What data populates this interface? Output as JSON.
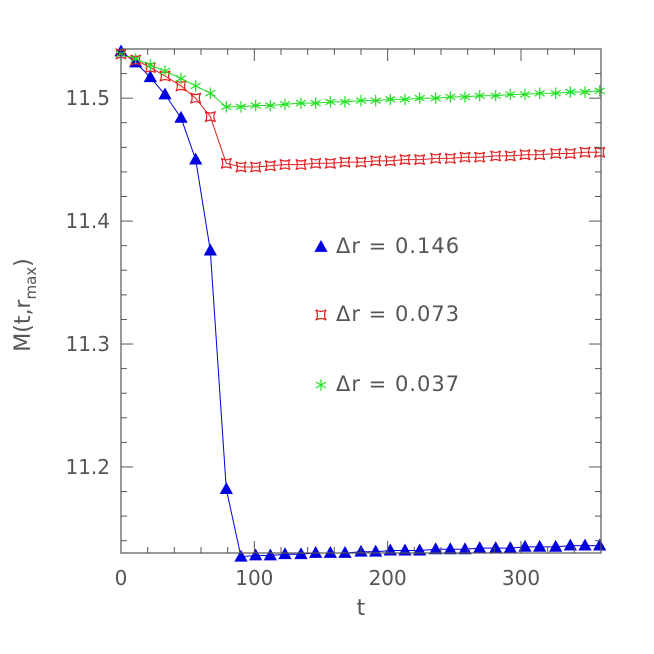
{
  "chart_data": {
    "type": "line",
    "xlabel": "t",
    "ylabel": "M(t,r_max)",
    "ylabel_main": "M(t,r",
    "ylabel_sub": "max",
    "ylabel_close": ")",
    "xlim": [
      0,
      360
    ],
    "ylim": [
      11.13,
      11.54
    ],
    "xticks": [
      0,
      100,
      200,
      300
    ],
    "xtick_labels": [
      "0",
      "100",
      "200",
      "300"
    ],
    "yticks": [
      11.2,
      11.3,
      11.4,
      11.5
    ],
    "ytick_labels": [
      "11.2",
      "11.3",
      "11.4",
      "11.5"
    ],
    "grid": false,
    "legend_position": "center-right",
    "series": [
      {
        "name": "Δr = 0.146",
        "legend_prefix": "Δr  =  ",
        "legend_value": "0.146",
        "marker": "triangle",
        "color": "#0000e0",
        "x": [
          0,
          11,
          22,
          33,
          45,
          56,
          67,
          79,
          90,
          101,
          112,
          123,
          135,
          146,
          157,
          168,
          180,
          191,
          202,
          213,
          224,
          236,
          247,
          258,
          269,
          281,
          292,
          303,
          314,
          326,
          337,
          348,
          359
        ],
        "y": [
          11.538,
          11.529,
          11.517,
          11.503,
          11.484,
          11.45,
          11.376,
          11.182,
          11.127,
          11.128,
          11.128,
          11.129,
          11.129,
          11.13,
          11.13,
          11.13,
          11.131,
          11.131,
          11.132,
          11.132,
          11.132,
          11.133,
          11.133,
          11.133,
          11.134,
          11.134,
          11.134,
          11.135,
          11.135,
          11.135,
          11.136,
          11.136,
          11.136
        ]
      },
      {
        "name": "Δr = 0.073",
        "legend_prefix": "Δr  =  ",
        "legend_value": "0.073",
        "marker": "star4",
        "color": "#e02020",
        "x": [
          0,
          11,
          22,
          33,
          45,
          56,
          67,
          79,
          90,
          101,
          112,
          123,
          135,
          146,
          157,
          168,
          180,
          191,
          202,
          213,
          224,
          236,
          247,
          258,
          269,
          281,
          292,
          303,
          314,
          326,
          337,
          348,
          359
        ],
        "y": [
          11.536,
          11.531,
          11.525,
          11.518,
          11.51,
          11.5,
          11.485,
          11.447,
          11.444,
          11.444,
          11.445,
          11.446,
          11.446,
          11.447,
          11.447,
          11.448,
          11.448,
          11.449,
          11.449,
          11.45,
          11.45,
          11.451,
          11.451,
          11.452,
          11.452,
          11.453,
          11.453,
          11.454,
          11.454,
          11.455,
          11.455,
          11.456,
          11.456
        ]
      },
      {
        "name": "Δr = 0.037",
        "legend_prefix": "Δr  =  ",
        "legend_value": "0.037",
        "marker": "asterisk",
        "color": "#20e020",
        "x": [
          0,
          11,
          22,
          33,
          45,
          56,
          67,
          79,
          90,
          101,
          112,
          123,
          135,
          146,
          157,
          168,
          180,
          191,
          202,
          213,
          224,
          236,
          247,
          258,
          269,
          281,
          292,
          303,
          314,
          326,
          337,
          348,
          359
        ],
        "y": [
          11.536,
          11.532,
          11.527,
          11.522,
          11.516,
          11.51,
          11.504,
          11.493,
          11.493,
          11.494,
          11.494,
          11.495,
          11.496,
          11.496,
          11.497,
          11.497,
          11.498,
          11.498,
          11.499,
          11.499,
          11.5,
          11.5,
          11.501,
          11.501,
          11.502,
          11.502,
          11.503,
          11.503,
          11.504,
          11.504,
          11.505,
          11.505,
          11.506
        ]
      }
    ]
  }
}
